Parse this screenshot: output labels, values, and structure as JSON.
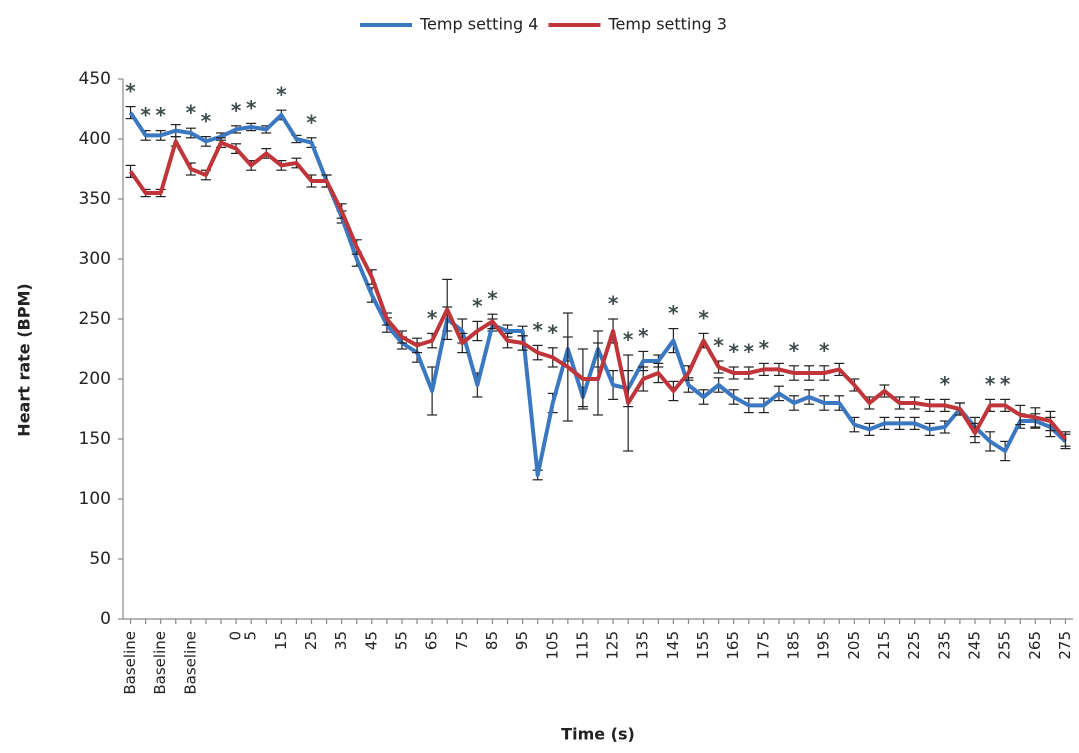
{
  "chart_data": {
    "type": "line",
    "x_label": "Time (s)",
    "y_label": "Heart rate (BPM)",
    "categories": [
      "Baseline",
      null,
      "Baseline",
      null,
      "Baseline",
      null,
      null,
      "0",
      "5",
      null,
      "15",
      null,
      "25",
      null,
      "35",
      null,
      "45",
      null,
      "55",
      null,
      "65",
      null,
      "75",
      null,
      "85",
      null,
      "95",
      null,
      "105",
      null,
      "115",
      null,
      "125",
      null,
      "135",
      null,
      "145",
      null,
      "155",
      null,
      "165",
      null,
      "175",
      null,
      "185",
      null,
      "195",
      null,
      "205",
      null,
      "215",
      null,
      "225",
      null,
      "235",
      null,
      "245",
      null,
      "255",
      null,
      "265",
      null,
      "275"
    ],
    "series": [
      {
        "name": "Temp setting 4",
        "color": "#3b78c2",
        "values": [
          422,
          403,
          403,
          407,
          405,
          398,
          402,
          408,
          410,
          408,
          420,
          400,
          397,
          365,
          335,
          300,
          270,
          245,
          230,
          222,
          190,
          250,
          240,
          195,
          245,
          240,
          240,
          120,
          180,
          225,
          185,
          225,
          195,
          192,
          215,
          215,
          232,
          195,
          185,
          195,
          185,
          178,
          178,
          188,
          180,
          185,
          180,
          180,
          162,
          158,
          163,
          163,
          163,
          158,
          160,
          175,
          160,
          148,
          140,
          165,
          165,
          160,
          148
        ],
        "errors": [
          5,
          4,
          4,
          5,
          4,
          4,
          3,
          3,
          3,
          3,
          4,
          3,
          4,
          5,
          5,
          6,
          6,
          6,
          5,
          8,
          20,
          10,
          10,
          10,
          5,
          5,
          4,
          4,
          8,
          10,
          8,
          15,
          12,
          15,
          8,
          5,
          10,
          6,
          6,
          6,
          6,
          6,
          6,
          6,
          6,
          6,
          6,
          6,
          6,
          5,
          5,
          5,
          5,
          5,
          5,
          5,
          8,
          8,
          8,
          6,
          6,
          8,
          6
        ]
      },
      {
        "name": "Temp setting 3",
        "color": "#c0353a",
        "values": [
          373,
          355,
          355,
          398,
          375,
          370,
          397,
          392,
          378,
          388,
          378,
          380,
          365,
          365,
          340,
          310,
          285,
          250,
          235,
          228,
          232,
          258,
          230,
          240,
          248,
          232,
          230,
          222,
          218,
          210,
          200,
          200,
          240,
          180,
          200,
          205,
          190,
          205,
          232,
          210,
          205,
          205,
          208,
          208,
          205,
          205,
          205,
          208,
          195,
          180,
          190,
          180,
          180,
          178,
          178,
          175,
          155,
          178,
          178,
          170,
          168,
          165,
          150
        ],
        "errors": [
          5,
          3,
          3,
          4,
          5,
          4,
          4,
          4,
          4,
          4,
          4,
          4,
          5,
          5,
          6,
          6,
          6,
          5,
          5,
          6,
          6,
          25,
          8,
          8,
          6,
          6,
          6,
          6,
          8,
          45,
          25,
          30,
          10,
          40,
          10,
          8,
          8,
          6,
          6,
          5,
          5,
          5,
          5,
          5,
          6,
          6,
          6,
          5,
          5,
          5,
          5,
          5,
          5,
          5,
          5,
          5,
          8,
          5,
          5,
          8,
          8,
          8,
          6
        ]
      }
    ],
    "significance": [
      "*",
      "*",
      "*",
      null,
      "*",
      "*",
      null,
      "*",
      "*",
      null,
      "*",
      null,
      "*",
      null,
      null,
      null,
      null,
      null,
      null,
      null,
      "*",
      null,
      null,
      "*",
      "*",
      null,
      null,
      "*",
      "*",
      null,
      null,
      null,
      "*",
      "*",
      "*",
      null,
      "*",
      null,
      "*",
      "*",
      "*",
      "*",
      "*",
      null,
      "*",
      null,
      "*",
      null,
      null,
      null,
      null,
      null,
      null,
      null,
      "*",
      null,
      null,
      "*",
      "*",
      null,
      null,
      null,
      null
    ],
    "ylim": [
      0,
      450
    ],
    "yticks": [
      0,
      50,
      100,
      150,
      200,
      250,
      300,
      350,
      400,
      450
    ],
    "legend": "top"
  }
}
